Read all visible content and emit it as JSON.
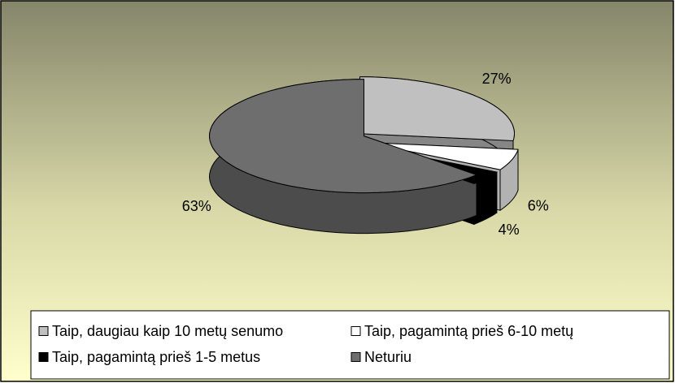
{
  "chart_data": {
    "type": "pie",
    "categories": [
      "Taip, daugiau kaip 10 metų senumo",
      "Taip, pagamintą prieš 6-10 metų",
      "Taip, pagamintą prieš 1-5 metus",
      "Neturiu"
    ],
    "values": [
      27,
      6,
      4,
      63
    ],
    "value_labels": [
      "27%",
      "6%",
      "4%",
      "63%"
    ],
    "colors": [
      "#c0c0c0",
      "#ffffff",
      "#000000",
      "#6e6e6e"
    ],
    "legend": "bottom"
  }
}
